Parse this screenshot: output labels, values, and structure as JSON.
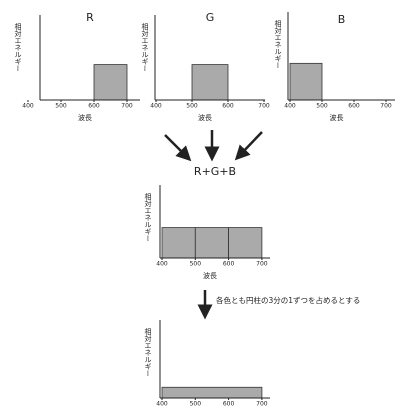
{
  "panels": [
    {
      "title": "R",
      "y_label": "相対エネルギー",
      "x_label": "波長",
      "xticks": [
        400,
        500,
        600,
        700
      ],
      "ylim": [
        0,
        2.4
      ],
      "bars": [
        {
          "from": 600,
          "to": 700,
          "height": 1
        }
      ]
    },
    {
      "title": "G",
      "y_label": "相対エネルギー",
      "x_label": "波長",
      "xticks": [
        400,
        500,
        600,
        700
      ],
      "ylim": [
        0,
        2.4
      ],
      "bars": [
        {
          "from": 500,
          "to": 600,
          "height": 1
        }
      ]
    },
    {
      "title": "B",
      "y_label": "相対エネルギー",
      "x_label": "波長",
      "xticks": [
        400,
        500,
        600,
        700
      ],
      "ylim": [
        0,
        2.4
      ],
      "bars": [
        {
          "from": 400,
          "to": 500,
          "height": 1
        }
      ]
    },
    {
      "title": "R+G+B",
      "y_label": "相対エネルギー",
      "x_label": "波長",
      "xticks": [
        400,
        500,
        600,
        700
      ],
      "ylim": [
        0,
        2.4
      ],
      "bars": [
        {
          "from": 400,
          "to": 500,
          "height": 1
        },
        {
          "from": 500,
          "to": 600,
          "height": 1
        },
        {
          "from": 600,
          "to": 700,
          "height": 1
        }
      ]
    },
    {
      "y_label": "相対エネルギー",
      "xticks": [
        400,
        500,
        600,
        700
      ],
      "ylim": [
        0,
        2.4
      ],
      "bars": [
        {
          "from": 400,
          "to": 700,
          "height": 0.33
        }
      ]
    }
  ],
  "note": "各色とも円柱の3分の1ずつを占めるとする"
}
